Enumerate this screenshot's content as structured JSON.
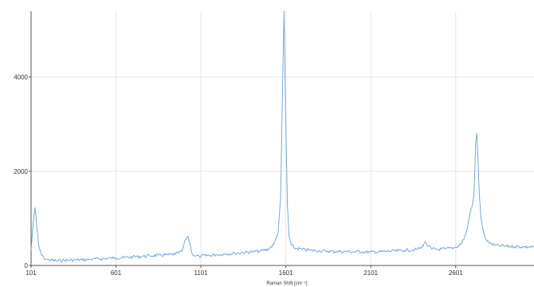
{
  "chart_data": {
    "type": "line",
    "title": "",
    "xlabel": "Raman Shift [cm⁻¹]",
    "ylabel": "",
    "xlim": [
      101,
      3062
    ],
    "ylim": [
      0,
      5400
    ],
    "x_ticks": [
      101,
      601,
      1101,
      1601,
      2101,
      2601
    ],
    "x_tick_labels": [
      "101",
      "601",
      "1101",
      "1601",
      "2101",
      "2601"
    ],
    "y_ticks": [
      0,
      2000,
      4000
    ],
    "y_tick_labels": [
      "0",
      "2000",
      "4000"
    ],
    "grid": true,
    "legend": "none",
    "series": [
      {
        "color": "#6a9fd4",
        "x": [
          101,
          112,
          124,
          135,
          146,
          160,
          175,
          200,
          250,
          300,
          350,
          400,
          450,
          500,
          550,
          601,
          650,
          700,
          750,
          800,
          850,
          900,
          950,
          990,
          1010,
          1025,
          1040,
          1050,
          1060,
          1070,
          1090,
          1101,
          1150,
          1200,
          1250,
          1300,
          1350,
          1400,
          1450,
          1500,
          1530,
          1555,
          1570,
          1582,
          1590,
          1600,
          1610,
          1620,
          1635,
          1650,
          1700,
          1750,
          1800,
          1850,
          1900,
          1950,
          2000,
          2050,
          2101,
          2150,
          2200,
          2250,
          2300,
          2350,
          2380,
          2400,
          2420,
          2440,
          2460,
          2500,
          2540,
          2580,
          2601,
          2620,
          2640,
          2660,
          2670,
          2680,
          2690,
          2700,
          2708,
          2713,
          2718,
          2725,
          2732,
          2740,
          2750,
          2765,
          2780,
          2800,
          2830,
          2860,
          2900,
          2950,
          3000,
          3062
        ],
        "values": [
          320,
          850,
          1230,
          800,
          420,
          240,
          160,
          120,
          100,
          110,
          115,
          120,
          130,
          140,
          150,
          160,
          170,
          180,
          190,
          205,
          215,
          225,
          240,
          300,
          550,
          620,
          400,
          240,
          210,
          200,
          195,
          195,
          215,
          230,
          245,
          260,
          275,
          290,
          305,
          350,
          450,
          700,
          1400,
          3800,
          5400,
          3200,
          1300,
          600,
          430,
          370,
          340,
          320,
          310,
          300,
          295,
          295,
          290,
          290,
          285,
          290,
          300,
          310,
          320,
          330,
          350,
          380,
          500,
          410,
          350,
          345,
          350,
          370,
          390,
          420,
          500,
          650,
          800,
          1000,
          1200,
          1300,
          1500,
          1900,
          2600,
          2800,
          2300,
          1500,
          1000,
          700,
          550,
          470,
          430,
          420,
          410,
          400,
          395,
          390
        ]
      }
    ]
  }
}
